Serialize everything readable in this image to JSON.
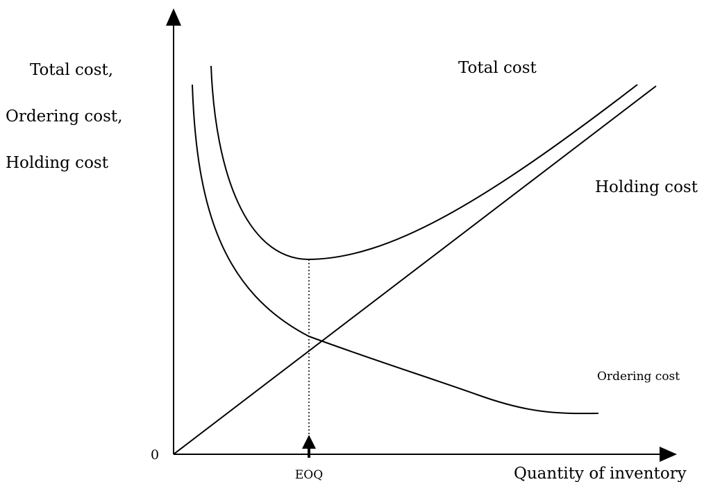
{
  "diagram": {
    "y_axis_label_lines": [
      "Total cost,",
      "Ordering cost,",
      "Holding cost"
    ],
    "x_axis_label": "Quantity of inventory",
    "origin_label": "0",
    "marker_label": "EOQ",
    "curves": {
      "total_cost": "Total cost",
      "holding_cost": "Holding cost",
      "ordering_cost": "Ordering cost"
    },
    "colors": {
      "ink": "#000000",
      "background": "#ffffff"
    }
  }
}
